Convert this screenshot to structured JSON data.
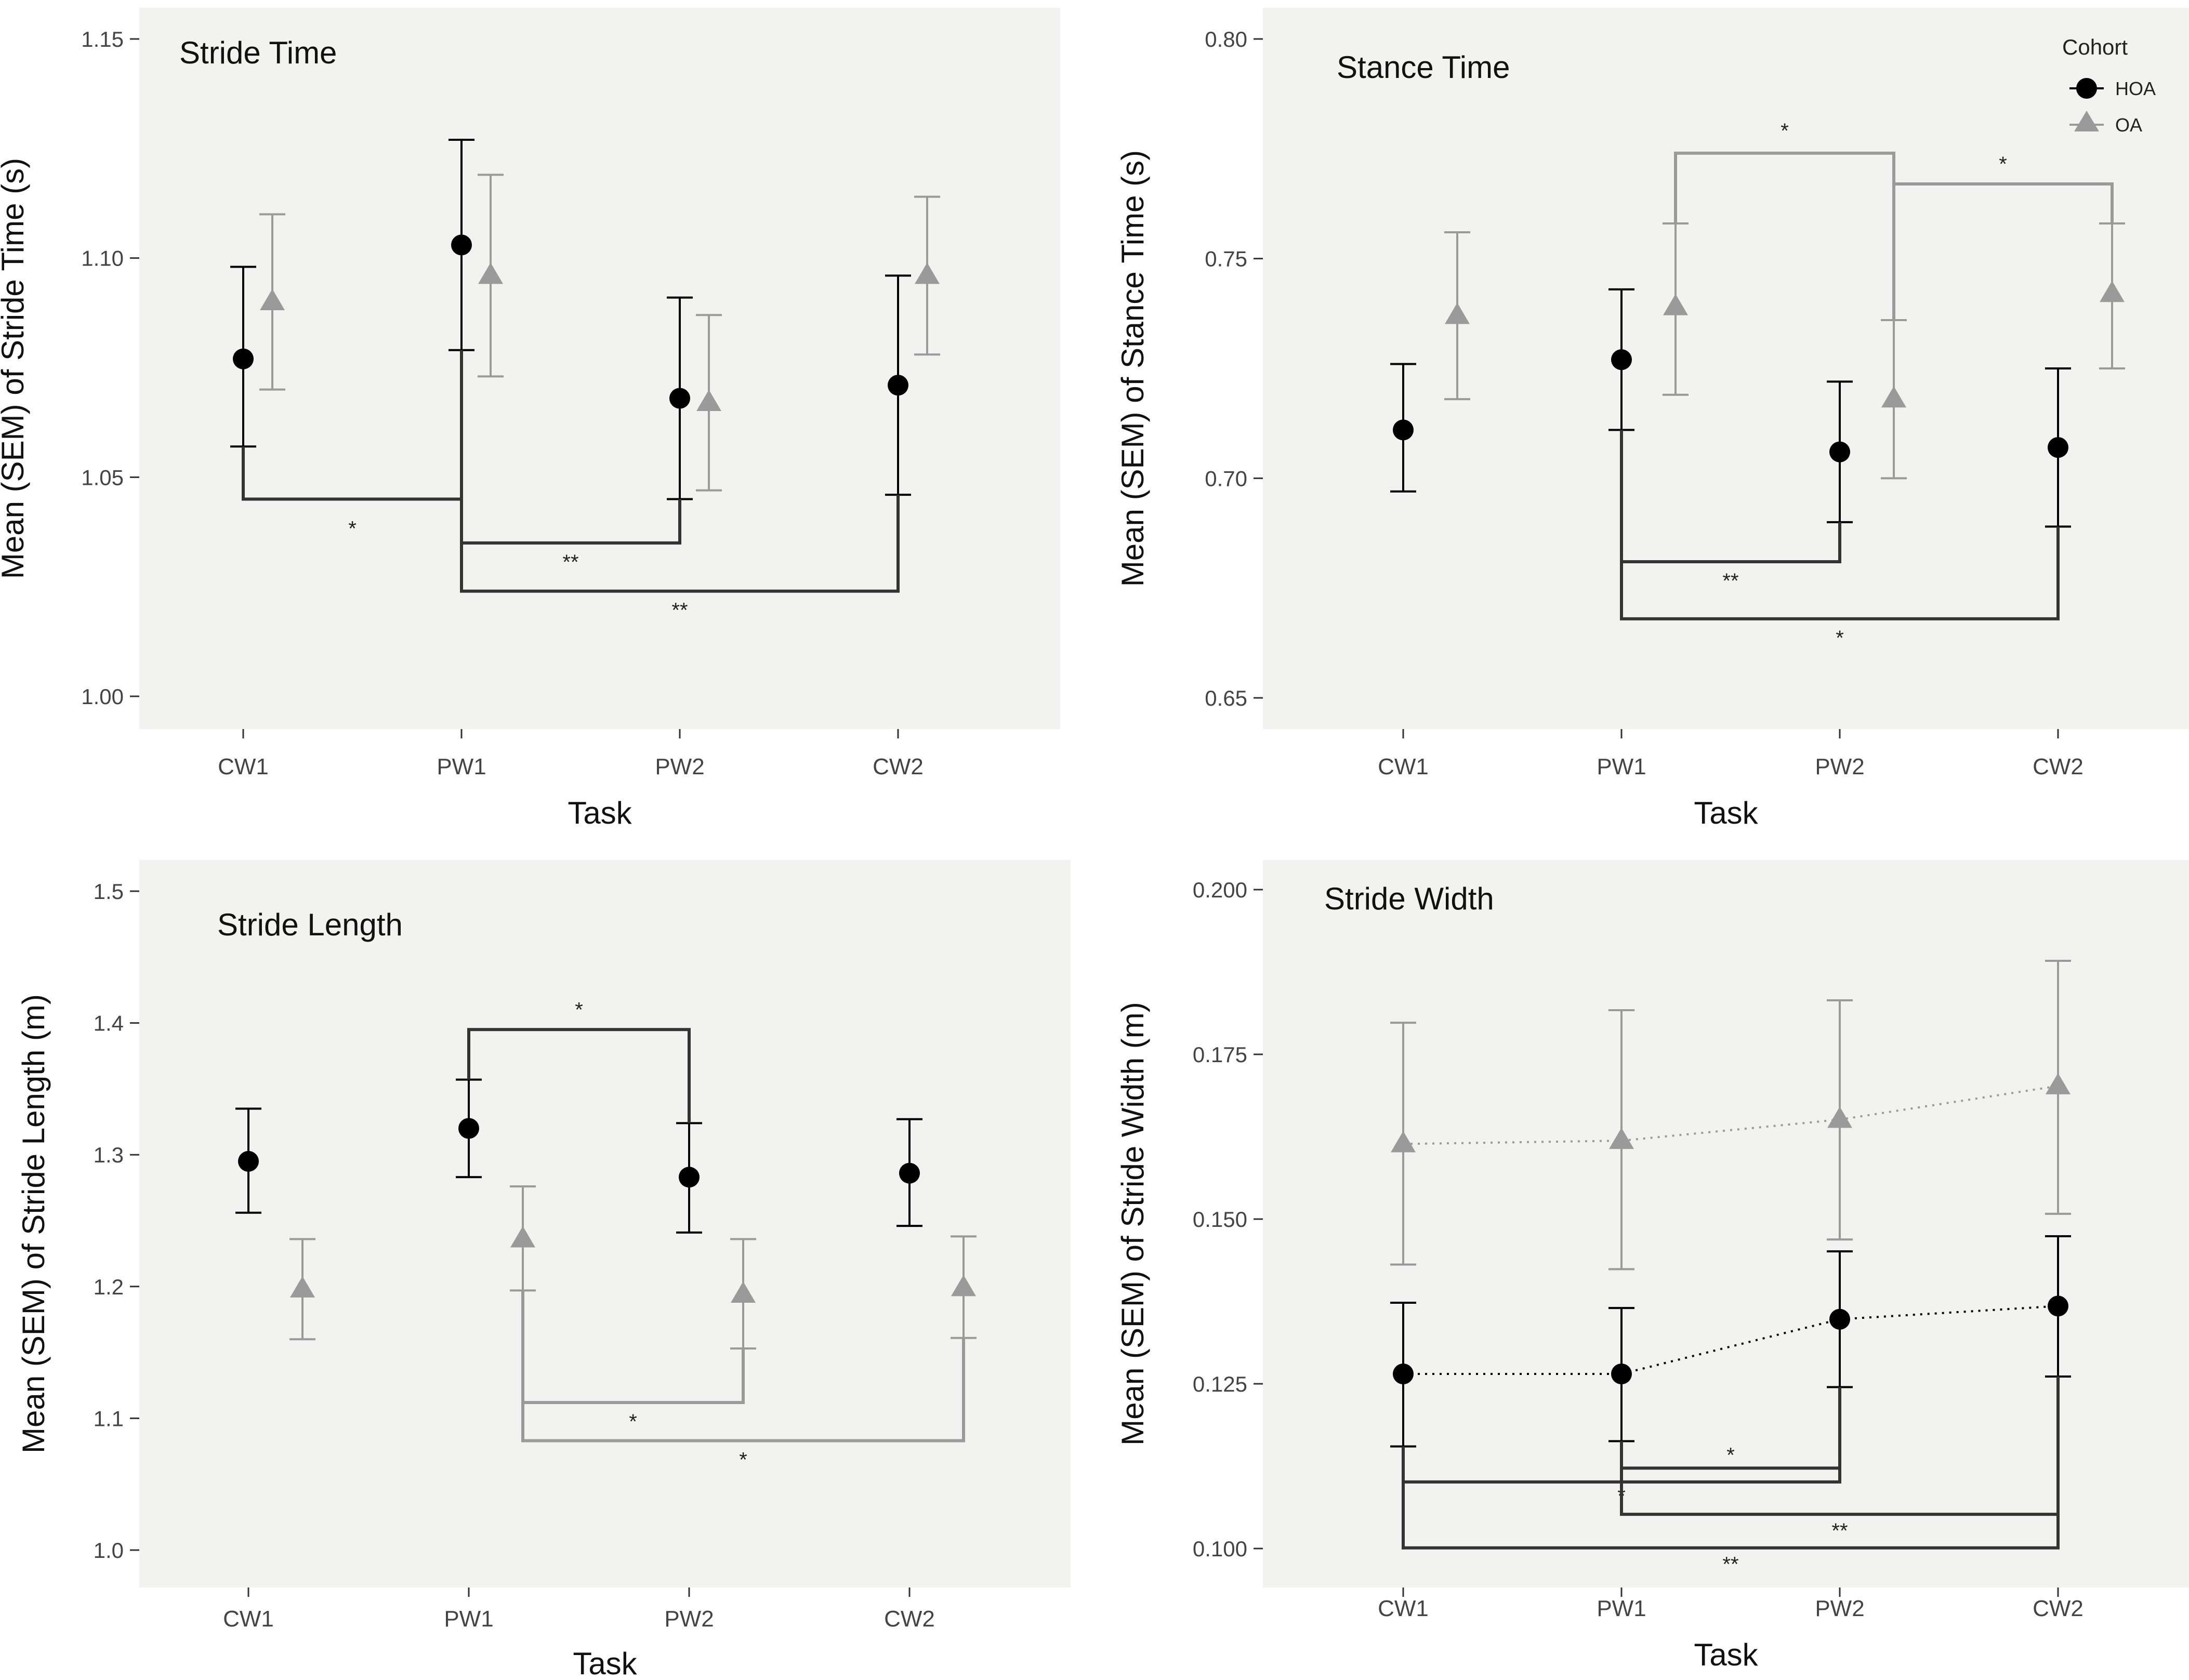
{
  "legend": {
    "title": "Cohort",
    "entries": [
      {
        "name": "HOA",
        "marker": "circle",
        "color": "#000000"
      },
      {
        "name": "OA",
        "marker": "triangle",
        "color": "#9a9a9a"
      }
    ]
  },
  "chart_data": [
    {
      "type": "scatter",
      "title": "Stride Time",
      "xlabel": "Task",
      "ylabel": "Mean (SEM) of Stride Time (s)",
      "categories": [
        "CW1",
        "PW1",
        "PW2",
        "CW2"
      ],
      "ylim": [
        0.985,
        1.155
      ],
      "yticks": [
        1.0,
        1.05,
        1.1,
        1.15
      ],
      "ytick_labels": [
        "1.00",
        "1.05",
        "1.10",
        "1.15"
      ],
      "connect_lines": false,
      "series": [
        {
          "name": "HOA",
          "values": [
            1.077,
            1.103,
            1.068,
            1.071
          ],
          "lower": [
            1.057,
            1.079,
            1.045,
            1.046
          ],
          "upper": [
            1.098,
            1.127,
            1.091,
            1.096
          ]
        },
        {
          "name": "OA",
          "values": [
            1.09,
            1.096,
            1.067,
            1.096
          ],
          "lower": [
            1.07,
            1.073,
            1.047,
            1.078
          ],
          "upper": [
            1.11,
            1.119,
            1.087,
            1.114
          ]
        }
      ],
      "annotations": [
        {
          "from": 0,
          "to": 1,
          "series": "HOA",
          "level": 1.045,
          "label": "*"
        },
        {
          "from": 1,
          "to": 2,
          "series": "HOA",
          "level": 1.035,
          "label": "**"
        },
        {
          "from": 1,
          "to": 3,
          "series": "HOA",
          "level": 1.024,
          "label": "**"
        }
      ]
    },
    {
      "type": "scatter",
      "title": "Stance Time",
      "xlabel": "Task",
      "ylabel": "Mean (SEM) of Stance Time (s)",
      "categories": [
        "CW1",
        "PW1",
        "PW2",
        "CW2"
      ],
      "ylim": [
        0.643,
        0.805
      ],
      "yticks": [
        0.65,
        0.7,
        0.75,
        0.8
      ],
      "ytick_labels": [
        "0.65",
        "0.70",
        "0.75",
        "0.80"
      ],
      "connect_lines": false,
      "series": [
        {
          "name": "HOA",
          "values": [
            0.711,
            0.727,
            0.706,
            0.707
          ],
          "lower": [
            0.697,
            0.711,
            0.69,
            0.689
          ],
          "upper": [
            0.726,
            0.743,
            0.722,
            0.725
          ]
        },
        {
          "name": "OA",
          "values": [
            0.737,
            0.739,
            0.718,
            0.742
          ],
          "lower": [
            0.718,
            0.719,
            0.7,
            0.725
          ],
          "upper": [
            0.756,
            0.758,
            0.736,
            0.758
          ]
        }
      ],
      "annotations": [
        {
          "from": 1,
          "to": 2,
          "series": "OA",
          "level": 0.774,
          "label": "*"
        },
        {
          "from": 2,
          "to": 3,
          "series": "OA",
          "level": 0.767,
          "label": "*"
        },
        {
          "from": 1,
          "to": 2,
          "series": "HOA",
          "level": 0.681,
          "label": "**"
        },
        {
          "from": 1,
          "to": 3,
          "series": "HOA",
          "level": 0.668,
          "label": "*"
        }
      ]
    },
    {
      "type": "scatter",
      "title": "Stride Length",
      "xlabel": "Task",
      "ylabel": "Mean (SEM) of Stride Length (m)",
      "categories": [
        "CW1",
        "PW1",
        "PW2",
        "CW2"
      ],
      "ylim": [
        0.975,
        1.525
      ],
      "yticks": [
        1.0,
        1.1,
        1.2,
        1.3,
        1.4,
        1.5
      ],
      "ytick_labels": [
        "1.0",
        "1.1",
        "1.2",
        "1.3",
        "1.4",
        "1.5"
      ],
      "connect_lines": false,
      "series": [
        {
          "name": "HOA",
          "values": [
            1.295,
            1.32,
            1.283,
            1.286
          ],
          "lower": [
            1.256,
            1.283,
            1.241,
            1.246
          ],
          "upper": [
            1.335,
            1.357,
            1.324,
            1.327
          ]
        },
        {
          "name": "OA",
          "values": [
            1.198,
            1.236,
            1.194,
            1.199
          ],
          "lower": [
            1.16,
            1.197,
            1.153,
            1.161
          ],
          "upper": [
            1.236,
            1.276,
            1.236,
            1.238
          ]
        }
      ],
      "annotations": [
        {
          "from": 1,
          "to": 2,
          "series": "HOA",
          "level": 1.395,
          "label": "*"
        },
        {
          "from": 1,
          "to": 2,
          "series": "OA",
          "level": 1.112,
          "label": "*"
        },
        {
          "from": 1,
          "to": 3,
          "series": "OA",
          "level": 1.083,
          "label": "*"
        }
      ]
    },
    {
      "type": "line",
      "title": "Stride Width",
      "xlabel": "Task",
      "ylabel": "Mean (SEM) of Stride Width (m)",
      "categories": [
        "CW1",
        "PW1",
        "PW2",
        "CW2"
      ],
      "ylim": [
        0.096,
        0.204
      ],
      "yticks": [
        0.1,
        0.125,
        0.15,
        0.175,
        0.2
      ],
      "ytick_labels": [
        "0.100",
        "0.125",
        "0.150",
        "0.175",
        "0.200"
      ],
      "connect_lines": true,
      "series": [
        {
          "name": "HOA",
          "values": [
            0.1265,
            0.1265,
            0.1348,
            0.1368
          ],
          "lower": [
            0.1155,
            0.1163,
            0.1245,
            0.1261
          ],
          "upper": [
            0.1373,
            0.1365,
            0.1451,
            0.1474
          ]
        },
        {
          "name": "OA",
          "values": [
            0.1614,
            0.1619,
            0.1651,
            0.1702
          ],
          "lower": [
            0.1431,
            0.1424,
            0.1469,
            0.1508
          ],
          "upper": [
            0.1798,
            0.1817,
            0.1832,
            0.1892
          ]
        }
      ],
      "annotations": [
        {
          "from": 1,
          "to": 2,
          "series": "HOA",
          "level": 0.1122,
          "label": "*"
        },
        {
          "from": 0,
          "to": 2,
          "series": "HOA",
          "level": 0.1101,
          "label": "*"
        },
        {
          "from": 1,
          "to": 3,
          "series": "HOA",
          "level": 0.1052,
          "label": "**"
        },
        {
          "from": 0,
          "to": 3,
          "series": "HOA",
          "level": 0.1001,
          "label": "**"
        }
      ]
    }
  ]
}
